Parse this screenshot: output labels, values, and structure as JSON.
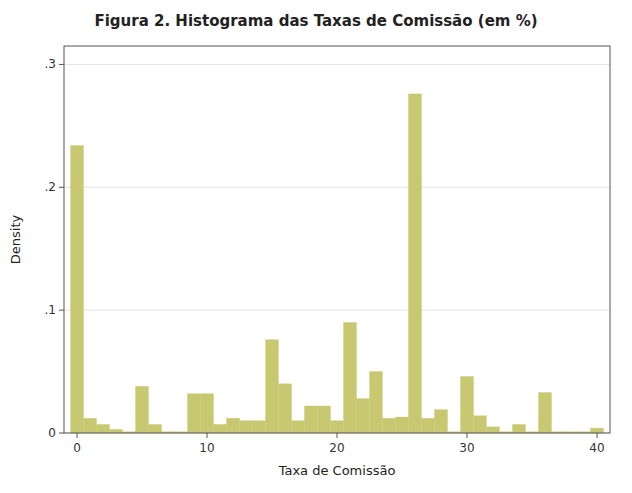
{
  "chart_data": {
    "type": "histogram",
    "title": "Figura 2. Histograma das Taxas de Comissão (em %)",
    "x_label": "Taxa de Comissão",
    "y_label": "Density",
    "color": "#c8c870",
    "bins": [
      -0.5,
      0.5,
      1.5,
      2.5,
      3.5,
      4.5,
      5.5,
      6.5,
      7.5,
      8.5,
      9.5,
      10.5,
      11.5,
      12.5,
      13.5,
      14.5,
      15.5,
      16.5,
      17.5,
      18.5,
      19.5,
      20.5,
      21.5,
      22.5,
      23.5,
      24.5,
      25.5,
      26.5,
      27.5,
      28.5,
      29.5,
      30.5,
      31.5,
      32.5,
      33.5,
      34.5,
      35.5,
      36.5,
      37.5,
      38.5,
      39.5,
      40.5
    ],
    "values": [
      0.234,
      0.012,
      0.007,
      0.003,
      0.001,
      0.038,
      0.007,
      0.001,
      0.001,
      0.032,
      0.032,
      0.007,
      0.012,
      0.01,
      0.01,
      0.076,
      0.04,
      0.01,
      0.022,
      0.022,
      0.01,
      0.09,
      0.028,
      0.05,
      0.012,
      0.013,
      0.276,
      0.012,
      0.019,
      0.001,
      0.046,
      0.014,
      0.005,
      0.001,
      0.007,
      0.001,
      0.033,
      0.001,
      0.001,
      0.001,
      0.004
    ],
    "xlim": [
      -1,
      41
    ],
    "xticks": [
      0,
      10,
      20,
      30,
      40
    ],
    "ylim": [
      0,
      0.315
    ],
    "yticks": [
      0,
      {
        "value": 0.1,
        "label": ".1"
      },
      {
        "value": 0.2,
        "label": ".2"
      },
      {
        "value": 0.3,
        "label": ".3"
      }
    ],
    "grid": true
  }
}
